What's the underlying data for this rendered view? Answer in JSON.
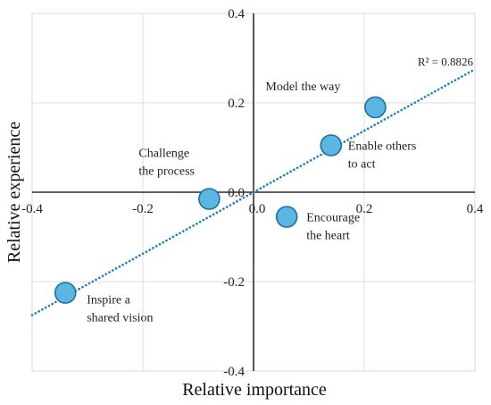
{
  "chart_data": {
    "type": "scatter",
    "title": "",
    "xlabel": "Relative importance",
    "ylabel": "Relative experience",
    "xlim": [
      -0.4,
      0.4
    ],
    "ylim": [
      -0.4,
      0.4
    ],
    "x_ticks": [
      "-0.4",
      "-0.2",
      "0.0",
      "0.2",
      "0.4"
    ],
    "y_ticks": [
      "0.4",
      "0.2",
      "0.0",
      "-0.2",
      "-0.4"
    ],
    "grid": true,
    "marker_color": "#5bb6e0",
    "marker_edge_color": "#1a6fa8",
    "trendline_color": "#1a7fc0",
    "points": [
      {
        "label_lines": [
          "Model the way"
        ],
        "x": 0.22,
        "y": 0.19
      },
      {
        "label_lines": [
          "Enable others",
          "to act"
        ],
        "x": 0.14,
        "y": 0.105
      },
      {
        "label_lines": [
          "Challenge",
          "the process"
        ],
        "x": -0.08,
        "y": -0.015
      },
      {
        "label_lines": [
          "Encourage",
          "the heart"
        ],
        "x": 0.06,
        "y": -0.055
      },
      {
        "label_lines": [
          "Inspire a",
          "shared vision"
        ],
        "x": -0.34,
        "y": -0.225
      }
    ],
    "trendline": {
      "style": "dotted",
      "r2_label": "R² = 0.8826",
      "x": [
        -0.4,
        0.4
      ],
      "y": [
        -0.275,
        0.275
      ]
    }
  }
}
